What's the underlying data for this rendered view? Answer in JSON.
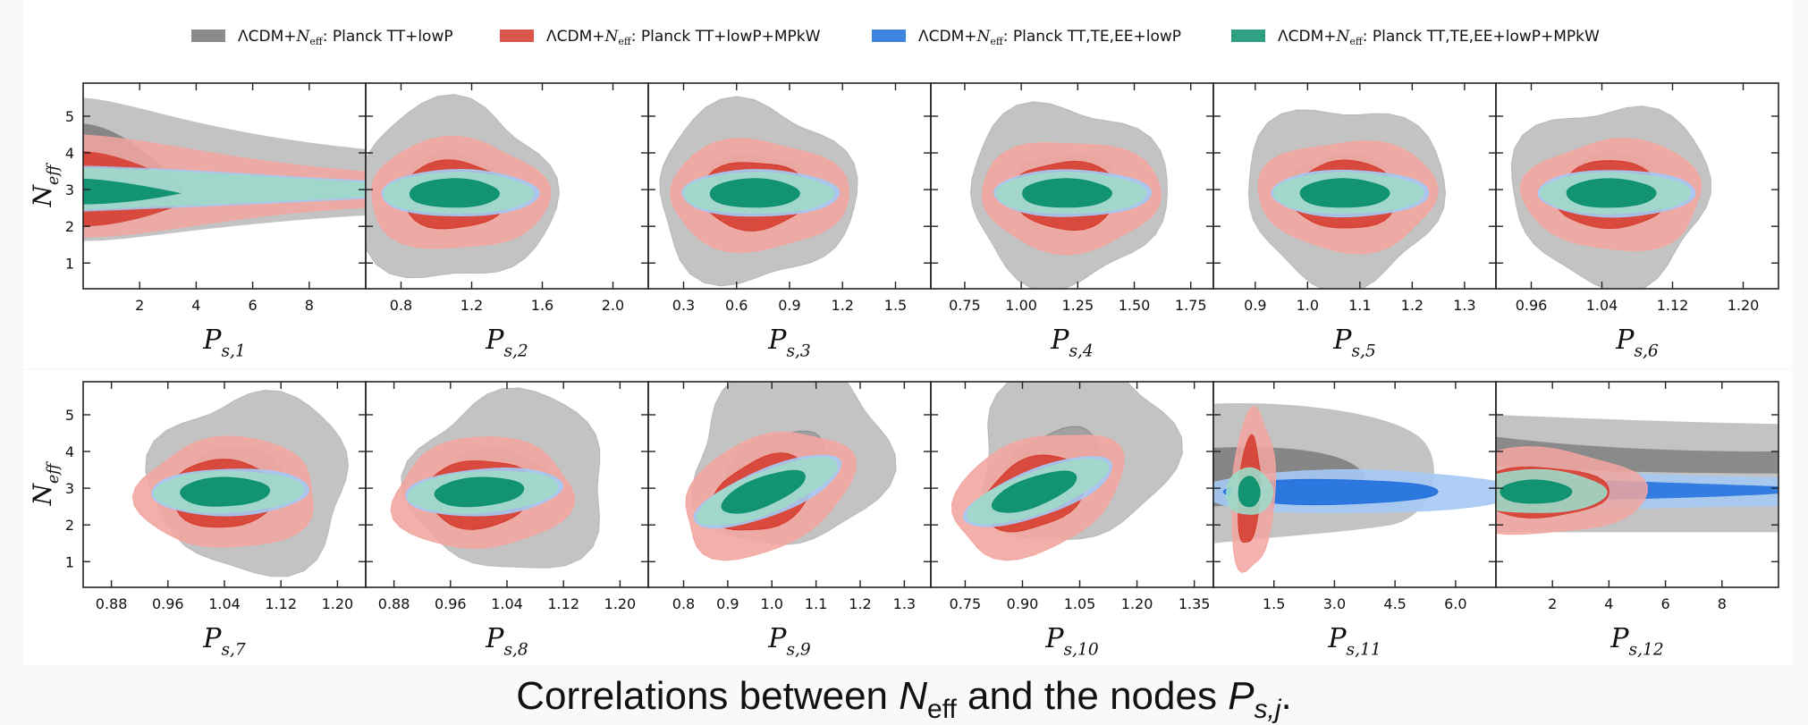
{
  "legend": [
    {
      "label": "ΛCDM+N_eff: Planck TT+lowP",
      "color_light": "#b8b8b8",
      "color_dark": "#777777"
    },
    {
      "label": "ΛCDM+N_eff: Planck TT+lowP+MPkW",
      "color_light": "#f2a6a0",
      "color_dark": "#d53a2c"
    },
    {
      "label": "ΛCDM+N_eff: Planck TT,TE,EE+lowP",
      "color_light": "#a5c9f5",
      "color_dark": "#1f6fdd"
    },
    {
      "label": "ΛCDM+N_eff: Planck TT,TE,EE+lowP+MPkW",
      "color_light": "#9fd9c8",
      "color_dark": "#0b8f6e"
    }
  ],
  "caption": {
    "prefix": "Correlations between ",
    "n": "N",
    "n_sub": "eff",
    "mid": " and the nodes ",
    "p": "P",
    "p_sub": "s,j",
    "suffix": "."
  },
  "chart_data": [
    {
      "type": "contour",
      "ylabel": "N_eff",
      "xlabel": "P_s,1",
      "yticks": [
        1,
        2,
        3,
        4,
        5
      ],
      "ylim": [
        0.3,
        5.9
      ],
      "xlim": [
        0,
        10
      ],
      "xticks": [
        2,
        4,
        6,
        8
      ],
      "xticklabels": [
        "2",
        "4",
        "6",
        "8"
      ],
      "note": "band"
    },
    {
      "type": "contour",
      "xlabel": "P_s,2",
      "ylim": [
        0.3,
        5.9
      ],
      "xlim": [
        0.6,
        2.2
      ],
      "xticks": [
        0.8,
        1.2,
        1.6,
        2.0
      ],
      "xticklabels": [
        "0.8",
        "1.2",
        "1.6",
        "2.0"
      ],
      "centers": [
        1.1,
        2.9
      ]
    },
    {
      "type": "contour",
      "xlabel": "P_s,3",
      "ylim": [
        0.3,
        5.9
      ],
      "xlim": [
        0.1,
        1.7
      ],
      "xticks": [
        0.3,
        0.6,
        0.9,
        1.2,
        1.5
      ],
      "xticklabels": [
        "0.3",
        "0.6",
        "0.9",
        "1.2",
        "1.5"
      ],
      "centers": [
        0.7,
        2.9
      ]
    },
    {
      "type": "contour",
      "xlabel": "P_s,4",
      "ylim": [
        0.3,
        5.9
      ],
      "xlim": [
        0.6,
        1.85
      ],
      "xticks": [
        0.75,
        1.0,
        1.25,
        1.5,
        1.75
      ],
      "xticklabels": [
        "0.75",
        "1.00",
        "1.25",
        "1.50",
        "1.75"
      ],
      "centers": [
        1.2,
        2.9
      ]
    },
    {
      "type": "contour",
      "xlabel": "P_s,5",
      "ylim": [
        0.3,
        5.9
      ],
      "xlim": [
        0.82,
        1.36
      ],
      "xticks": [
        0.9,
        1.0,
        1.1,
        1.2,
        1.3
      ],
      "xticklabels": [
        "0.9",
        "1.0",
        "1.1",
        "1.2",
        "1.3"
      ],
      "centers": [
        1.07,
        2.9
      ]
    },
    {
      "type": "contour",
      "xlabel": "P_s,6",
      "ylim": [
        0.3,
        5.9
      ],
      "xlim": [
        0.92,
        1.24
      ],
      "xticks": [
        0.96,
        1.04,
        1.12,
        1.2
      ],
      "xticklabels": [
        "0.96",
        "1.04",
        "1.12",
        "1.20"
      ],
      "centers": [
        1.05,
        2.9
      ]
    },
    {
      "type": "contour",
      "ylabel": "N_eff",
      "xlabel": "P_s,7",
      "yticks": [
        1,
        2,
        3,
        4,
        5
      ],
      "ylim": [
        0.3,
        5.9
      ],
      "xlim": [
        0.84,
        1.24
      ],
      "xticks": [
        0.88,
        0.96,
        1.04,
        1.12,
        1.2
      ],
      "xticklabels": [
        "0.88",
        "0.96",
        "1.04",
        "1.12",
        "1.20"
      ],
      "centers": [
        1.04,
        2.9
      ]
    },
    {
      "type": "contour",
      "xlabel": "P_s,8",
      "ylim": [
        0.3,
        5.9
      ],
      "xlim": [
        0.84,
        1.24
      ],
      "xticks": [
        0.88,
        0.96,
        1.04,
        1.12,
        1.2
      ],
      "xticklabels": [
        "0.88",
        "0.96",
        "1.04",
        "1.12",
        "1.20"
      ],
      "centers": [
        1.0,
        2.9
      ]
    },
    {
      "type": "contour",
      "xlabel": "P_s,9",
      "ylim": [
        0.3,
        5.9
      ],
      "xlim": [
        0.72,
        1.36
      ],
      "xticks": [
        0.8,
        0.9,
        1.0,
        1.1,
        1.2,
        1.3
      ],
      "xticklabels": [
        "0.8",
        "0.9",
        "1.0",
        "1.1",
        "1.2",
        "1.3"
      ],
      "centers": [
        0.98,
        2.9
      ]
    },
    {
      "type": "contour",
      "xlabel": "P_s,10",
      "ylim": [
        0.3,
        5.9
      ],
      "xlim": [
        0.66,
        1.4
      ],
      "xticks": [
        0.75,
        0.9,
        1.05,
        1.2,
        1.35
      ],
      "xticklabels": [
        "0.75",
        "0.90",
        "1.05",
        "1.20",
        "1.35"
      ],
      "centers": [
        0.93,
        2.9
      ]
    },
    {
      "type": "contour",
      "xlabel": "P_s,11",
      "ylim": [
        0.3,
        5.9
      ],
      "xlim": [
        0,
        7
      ],
      "xticks": [
        1.5,
        3.0,
        4.5,
        6.0
      ],
      "xticklabels": [
        "1.5",
        "3.0",
        "4.5",
        "6.0"
      ],
      "centers": [
        0.8,
        2.9
      ]
    },
    {
      "type": "contour",
      "xlabel": "P_s,12",
      "ylim": [
        0.3,
        5.9
      ],
      "xlim": [
        0,
        10
      ],
      "xticks": [
        2,
        4,
        6,
        8
      ],
      "xticklabels": [
        "2",
        "4",
        "6",
        "8"
      ],
      "note": "band"
    }
  ]
}
